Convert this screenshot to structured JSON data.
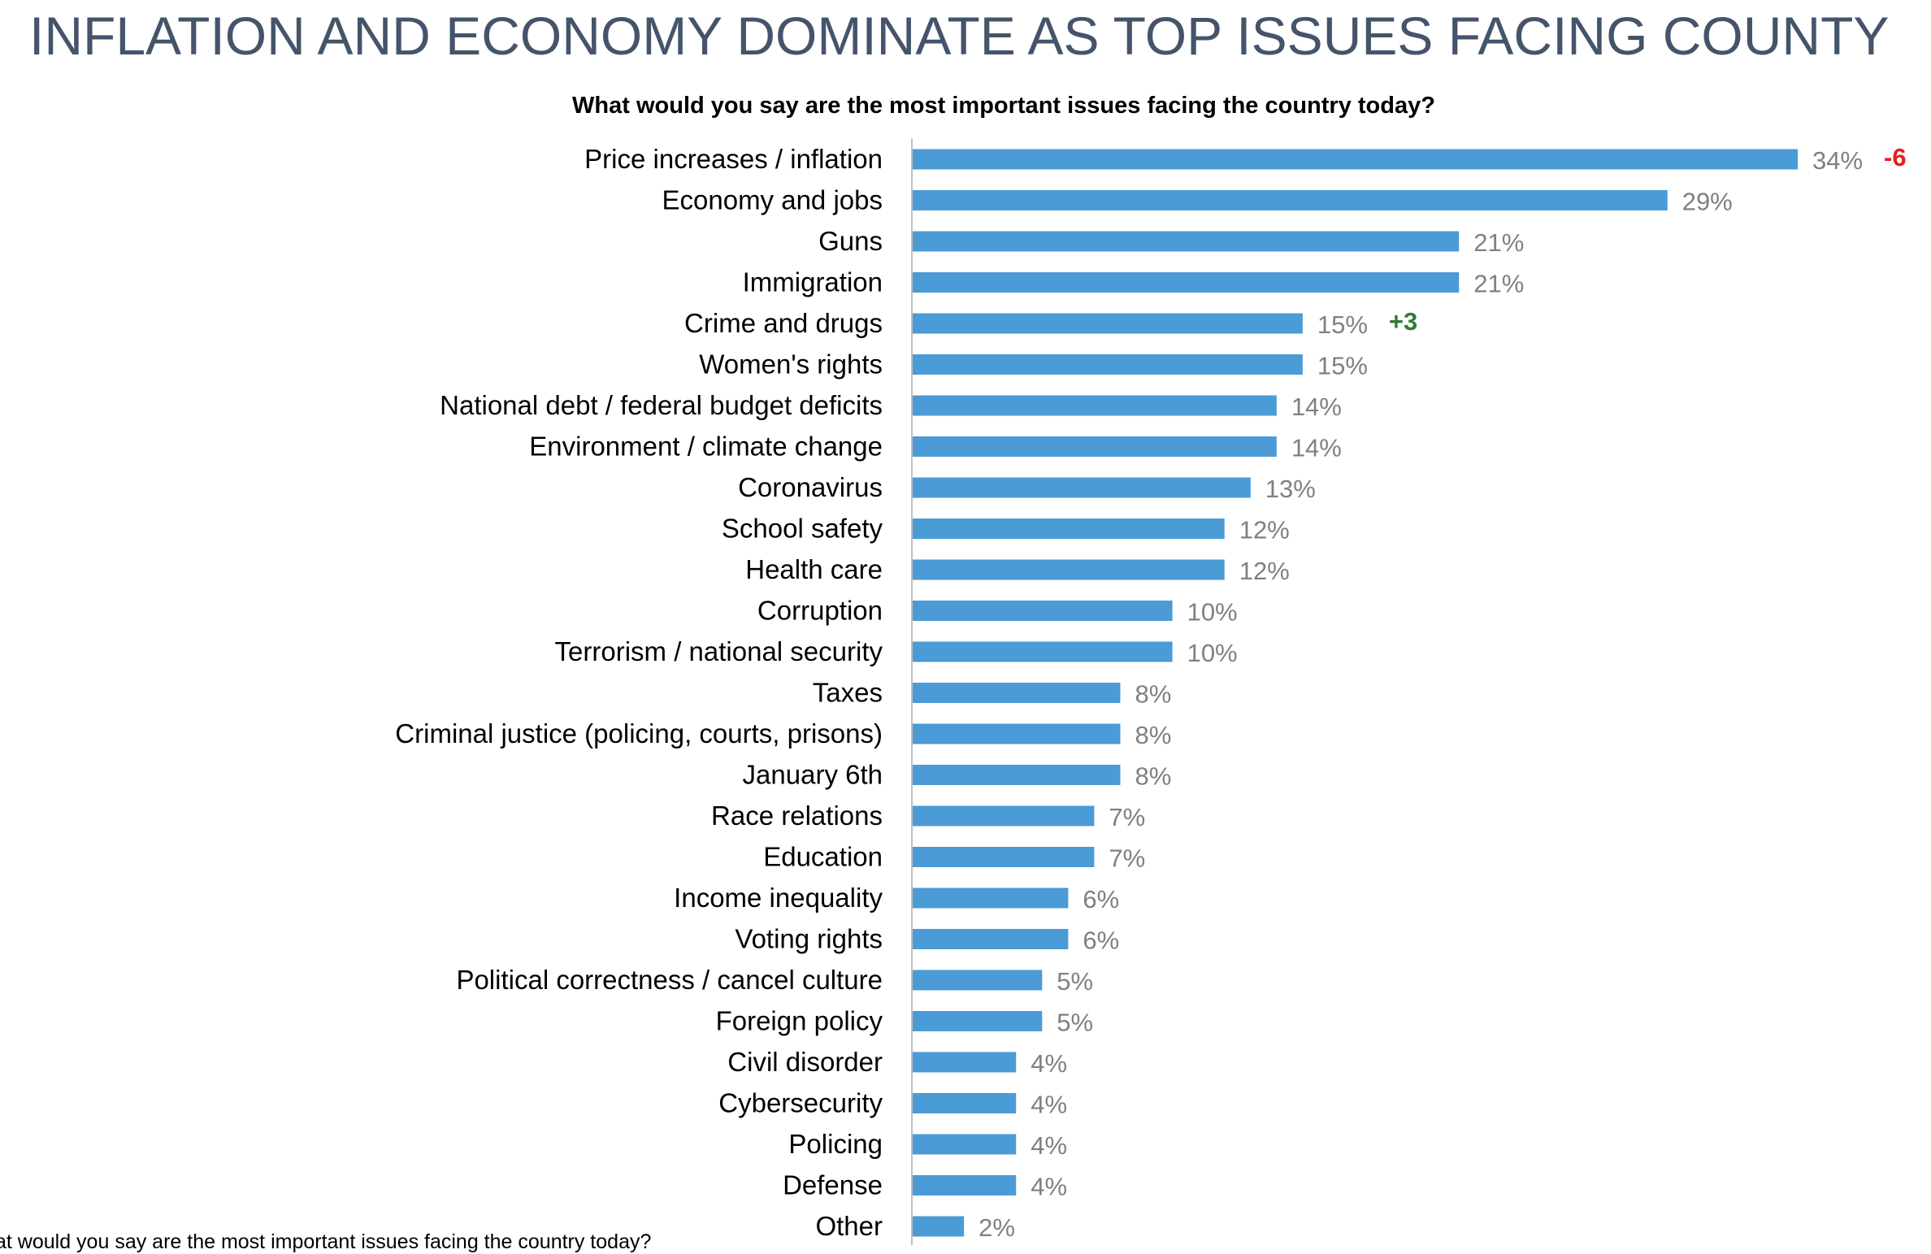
{
  "page": {
    "title": "INFLATION AND ECONOMY DOMINATE AS TOP ISSUES FACING COUNTY",
    "footnote": "at would you say are the most important issues facing the country today?"
  },
  "chart_data": {
    "type": "bar",
    "orientation": "horizontal",
    "title": "What would you say are the most important issues facing the country today?",
    "xlim": [
      0,
      34
    ],
    "grid": false,
    "bar_color": "#4a9bd6",
    "value_color": "#808080",
    "categories": [
      "Price increases / inflation",
      "Economy and jobs",
      "Guns",
      "Immigration",
      "Crime and drugs",
      "Women's rights",
      "National debt / federal budget deficits",
      "Environment / climate change",
      "Coronavirus",
      "School safety",
      "Health care",
      "Corruption",
      "Terrorism / national security",
      "Taxes",
      "Criminal justice (policing, courts, prisons)",
      "January 6th",
      "Race relations",
      "Education",
      "Income inequality",
      "Voting rights",
      "Political correctness / cancel culture",
      "Foreign policy",
      "Civil disorder",
      "Cybersecurity",
      "Policing",
      "Defense",
      "Other"
    ],
    "values": [
      34,
      29,
      21,
      21,
      15,
      15,
      14,
      14,
      13,
      12,
      12,
      10,
      10,
      8,
      8,
      8,
      7,
      7,
      6,
      6,
      5,
      5,
      4,
      4,
      4,
      4,
      2
    ],
    "value_labels": [
      "34%",
      "29%",
      "21%",
      "21%",
      "15%",
      "15%",
      "14%",
      "14%",
      "13%",
      "12%",
      "12%",
      "10%",
      "10%",
      "8%",
      "8%",
      "8%",
      "7%",
      "7%",
      "6%",
      "6%",
      "5%",
      "5%",
      "4%",
      "4%",
      "4%",
      "4%",
      "2%"
    ],
    "changes": [
      {
        "category": "Price increases / inflation",
        "text": "-6",
        "color": "#e0211f"
      },
      {
        "category": "Crime and drugs",
        "text": "+3",
        "color": "#2e7d32"
      }
    ]
  }
}
